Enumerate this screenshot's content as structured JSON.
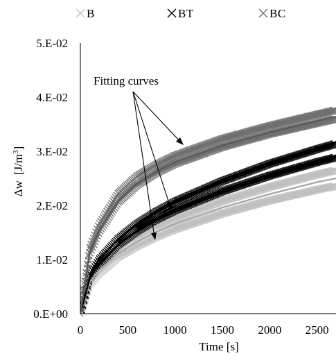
{
  "chart_data": {
    "type": "scatter",
    "title": "",
    "xlabel": "Time [s]",
    "ylabel_main": "Δw",
    "ylabel_unit_base": "[J/m",
    "ylabel_unit_sup": "3",
    "ylabel_unit_close": "]",
    "xlim": [
      0,
      2700
    ],
    "ylim": [
      0,
      0.05
    ],
    "x_ticks": [
      {
        "value": 0,
        "label": "0"
      },
      {
        "value": 500,
        "label": "500"
      },
      {
        "value": 1000,
        "label": "1000"
      },
      {
        "value": 1500,
        "label": "1500"
      },
      {
        "value": 2000,
        "label": "2000"
      },
      {
        "value": 2500,
        "label": "2500"
      }
    ],
    "y_ticks": [
      {
        "value": 0,
        "label": "0.E+00"
      },
      {
        "value": 0.01,
        "label": "1.E-02"
      },
      {
        "value": 0.02,
        "label": "2.E-02"
      },
      {
        "value": 0.03,
        "label": "3.E-02"
      },
      {
        "value": 0.04,
        "label": "4.E-02"
      },
      {
        "value": 0.05,
        "label": "5.E-02"
      }
    ],
    "grid": false,
    "legend_position": "top",
    "annotation": "Fitting curves",
    "series": [
      {
        "name": "B",
        "color": "#c0c0c0",
        "fit_color": "#aaaaaa",
        "bands": [
          {
            "x": [
              0,
              100,
              200,
              400,
              600,
              800,
              1000,
              1500,
              2000,
              2500,
              2700
            ],
            "y": [
              0.0,
              0.0055,
              0.0075,
              0.0105,
              0.0125,
              0.0142,
              0.0156,
              0.0185,
              0.0209,
              0.0229,
              0.0236
            ]
          },
          {
            "x": [
              0,
              100,
              200,
              400,
              600,
              800,
              1000,
              1500,
              2000,
              2500,
              2700
            ],
            "y": [
              0.0,
              0.0063,
              0.0085,
              0.0118,
              0.0141,
              0.016,
              0.0176,
              0.0208,
              0.0234,
              0.0257,
              0.0265
            ]
          }
        ],
        "fit": {
          "x": [
            0,
            100,
            200,
            400,
            600,
            800,
            1000,
            1500,
            2000,
            2500,
            2700
          ],
          "y": [
            0.0,
            0.0059,
            0.008,
            0.0111,
            0.0133,
            0.0151,
            0.0166,
            0.0196,
            0.0221,
            0.0243,
            0.025
          ]
        }
      },
      {
        "name": "BT",
        "color": "#000000",
        "fit_color": "#000000",
        "bands": [
          {
            "x": [
              0,
              100,
              200,
              400,
              600,
              800,
              1000,
              1500,
              2000,
              2500,
              2700
            ],
            "y": [
              0.0,
              0.0068,
              0.0093,
              0.0128,
              0.0153,
              0.0174,
              0.0191,
              0.0226,
              0.0255,
              0.028,
              0.0289
            ]
          },
          {
            "x": [
              0,
              100,
              200,
              400,
              600,
              800,
              1000,
              1500,
              2000,
              2500,
              2700
            ],
            "y": [
              0.0,
              0.0073,
              0.01,
              0.0138,
              0.0166,
              0.0188,
              0.0207,
              0.0245,
              0.0277,
              0.0304,
              0.0314
            ]
          }
        ],
        "fit": {
          "x": [
            0,
            100,
            200,
            400,
            600,
            800,
            1000,
            1500,
            2000,
            2500,
            2700
          ],
          "y": [
            0.0,
            0.0066,
            0.0091,
            0.0127,
            0.0153,
            0.0174,
            0.0191,
            0.0226,
            0.0256,
            0.0281,
            0.029
          ]
        }
      },
      {
        "name": "BC",
        "color": "#707070",
        "fit_color": "#5a5a5a",
        "bands": [
          {
            "x": [
              0,
              100,
              200,
              400,
              600,
              800,
              1000,
              1500,
              2000,
              2500,
              2700
            ],
            "y": [
              0.0,
              0.0112,
              0.0152,
              0.0206,
              0.0238,
              0.026,
              0.0277,
              0.0308,
              0.0332,
              0.0352,
              0.036
            ]
          },
          {
            "x": [
              0,
              100,
              200,
              400,
              600,
              800,
              1000,
              1500,
              2000,
              2500,
              2700
            ],
            "y": [
              0.0,
              0.0122,
              0.0165,
              0.0222,
              0.0254,
              0.0275,
              0.0292,
              0.0323,
              0.0347,
              0.0368,
              0.0376
            ]
          }
        ],
        "fit": {
          "x": [
            0,
            100,
            200,
            400,
            600,
            800,
            1000,
            1500,
            2000,
            2500,
            2700
          ],
          "y": [
            0.0,
            0.0114,
            0.0155,
            0.0209,
            0.0241,
            0.0263,
            0.028,
            0.0311,
            0.0335,
            0.0356,
            0.0364
          ]
        }
      }
    ]
  }
}
